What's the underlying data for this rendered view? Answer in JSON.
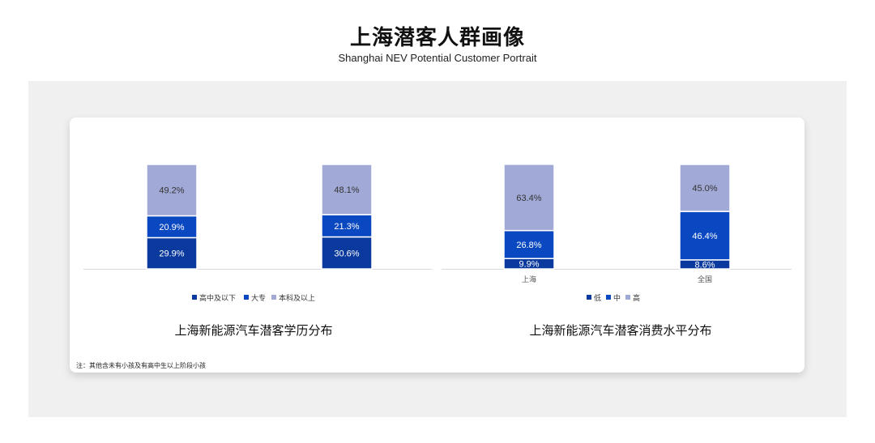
{
  "header": {
    "title": "上海潜客人群画像",
    "subtitle": "Shanghai NEV Potential Customer Portrait"
  },
  "colors": {
    "dark": "#0b3a9e",
    "mid": "#0a48c2",
    "light": "#a1a9d6"
  },
  "note": "注：其他含未有小孩及有高中生以上阶段小孩",
  "chart_data": [
    {
      "type": "bar",
      "stacked": true,
      "title": "上海新能源汽车潜客学历分布",
      "categories": [
        "",
        ""
      ],
      "series": [
        {
          "name": "高中及以下",
          "values": [
            29.9,
            30.6
          ]
        },
        {
          "name": "大专",
          "values": [
            20.9,
            21.3
          ]
        },
        {
          "name": "本科及以上",
          "values": [
            49.2,
            48.1
          ]
        }
      ],
      "labels": [
        [
          "29.9%",
          "30.6%"
        ],
        [
          "20.9%",
          "21.3%"
        ],
        [
          "49.2%",
          "48.1%"
        ]
      ],
      "legend": "bottom",
      "ylim": [
        0,
        100
      ],
      "grid": false
    },
    {
      "type": "bar",
      "stacked": true,
      "title": "上海新能源汽车潜客消费水平分布",
      "categories": [
        "上海",
        "全国"
      ],
      "series": [
        {
          "name": "低",
          "values": [
            9.9,
            8.6
          ]
        },
        {
          "name": "中",
          "values": [
            26.8,
            46.4
          ]
        },
        {
          "name": "高",
          "values": [
            63.4,
            45.0
          ]
        }
      ],
      "labels": [
        [
          "9.9%",
          "8.6%"
        ],
        [
          "26.8%",
          "46.4%"
        ],
        [
          "63.4%",
          "45.0%"
        ]
      ],
      "legend": "bottom",
      "ylim": [
        0,
        100
      ],
      "grid": false
    }
  ]
}
